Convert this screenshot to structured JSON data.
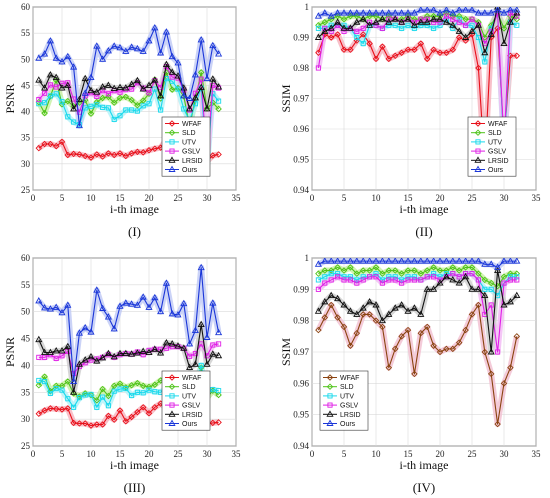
{
  "chart_data": [
    {
      "type": "line",
      "panel_label": "(I)",
      "xlabel": "i-th image",
      "ylabel": "PSNR",
      "xlim": [
        0,
        35
      ],
      "ylim": [
        25,
        60
      ],
      "xticks": [
        0,
        5,
        10,
        15,
        20,
        25,
        30,
        35
      ],
      "yticks": [
        25,
        30,
        35,
        40,
        45,
        50,
        55,
        60
      ],
      "grid": true,
      "legend_position": "bottom-right",
      "series": [
        {
          "name": "WFAF",
          "values": [
            33,
            33.8,
            33.8,
            33.4,
            34.2,
            31.7,
            31.9,
            31.8,
            31.5,
            31.2,
            31.8,
            31.4,
            32,
            31.7,
            32,
            31.5,
            32,
            32.3,
            32.2,
            32.6,
            32.9,
            33.1,
            34.6,
            34.5,
            34,
            32.8,
            28.5,
            36,
            36.8,
            30.5,
            31.6,
            31.8
          ]
        },
        {
          "name": "SLD",
          "values": [
            41.8,
            39.7,
            42.9,
            46,
            41.4,
            42,
            41,
            41.7,
            42.2,
            39.6,
            41.8,
            42.6,
            42.8,
            41.7,
            42.6,
            42.8,
            42.2,
            41.2,
            42.1,
            43.4,
            46.1,
            42.5,
            47.5,
            44.2,
            44.5,
            42.9,
            37.2,
            42.4,
            47.5,
            40.6,
            41.7,
            40.5
          ]
        },
        {
          "name": "UTV",
          "values": [
            41.5,
            41.7,
            43,
            43.4,
            41.9,
            39,
            38,
            37.5,
            40.7,
            41,
            41.3,
            40.8,
            40.7,
            38.5,
            39.2,
            40.3,
            40.3,
            40.1,
            41.1,
            41.5,
            44.3,
            40.3,
            46.3,
            45.8,
            44.3,
            40.5,
            38.3,
            41.5,
            44.5,
            29.5,
            43.4,
            42
          ]
        },
        {
          "name": "GSLV",
          "values": [
            42.3,
            43.5,
            45.1,
            44.7,
            45.4,
            45.5,
            42.4,
            39.9,
            43,
            43.6,
            42.9,
            44,
            43.4,
            44,
            43.7,
            44.2,
            44.3,
            45.5,
            44.5,
            43.6,
            45.9,
            44.6,
            48.6,
            46.6,
            46.4,
            44.1,
            40.3,
            43.5,
            46.2,
            31,
            45,
            44.5
          ]
        },
        {
          "name": "LRSID",
          "values": [
            46,
            44.5,
            47,
            46.5,
            44.5,
            45,
            40.5,
            42.3,
            46.3,
            44,
            43.7,
            44.7,
            45,
            44.4,
            44.6,
            44.5,
            45.2,
            45.9,
            44.3,
            45,
            46,
            43,
            49,
            47.5,
            46.8,
            44.5,
            40.5,
            42.6,
            44.6,
            40.5,
            46.2,
            44.7
          ]
        },
        {
          "name": "Ours",
          "values": [
            50.2,
            51,
            53.5,
            50.2,
            49.5,
            50.5,
            48.5,
            37.3,
            43.5,
            46.5,
            52.5,
            50,
            51.6,
            52.5,
            52.2,
            51.5,
            52.3,
            52,
            51.5,
            53.5,
            56,
            51.2,
            55.2,
            50.5,
            49.3,
            43,
            42.5,
            47,
            53.7,
            46.3,
            52.6,
            51
          ]
        }
      ]
    },
    {
      "type": "line",
      "panel_label": "(II)",
      "xlabel": "i-th image",
      "ylabel": "SSIM",
      "xlim": [
        0,
        35
      ],
      "ylim": [
        0.94,
        1
      ],
      "xticks": [
        0,
        5,
        10,
        15,
        20,
        25,
        30,
        35
      ],
      "yticks": [
        0.94,
        0.95,
        0.96,
        0.97,
        0.98,
        0.99,
        1
      ],
      "grid": true,
      "legend_position": "bottom-right",
      "series": [
        {
          "name": "WFAF",
          "values": [
            0.985,
            0.991,
            0.99,
            0.991,
            0.986,
            0.986,
            0.989,
            0.991,
            0.988,
            0.983,
            0.987,
            0.983,
            0.984,
            0.985,
            0.986,
            0.986,
            0.988,
            0.983,
            0.986,
            0.985,
            0.985,
            0.986,
            0.99,
            0.989,
            0.991,
            0.98,
            0.948,
            0.99,
            0.993,
            0.956,
            0.984,
            0.984
          ]
        },
        {
          "name": "SLD",
          "values": [
            0.994,
            0.995,
            0.996,
            0.997,
            0.996,
            0.997,
            0.997,
            0.996,
            0.997,
            0.997,
            0.996,
            0.997,
            0.996,
            0.996,
            0.997,
            0.996,
            0.996,
            0.997,
            0.997,
            0.997,
            0.998,
            0.997,
            0.997,
            0.996,
            0.996,
            0.995,
            0.99,
            0.994,
            0.998,
            0.993,
            0.997,
            0.996
          ]
        },
        {
          "name": "UTV",
          "values": [
            0.993,
            0.993,
            0.994,
            0.994,
            0.994,
            0.993,
            0.99,
            0.988,
            0.994,
            0.994,
            0.993,
            0.994,
            0.994,
            0.993,
            0.994,
            0.993,
            0.994,
            0.994,
            0.993,
            0.994,
            0.996,
            0.993,
            0.996,
            0.994,
            0.994,
            0.99,
            0.982,
            0.993,
            0.998,
            0.952,
            0.995,
            0.994
          ]
        },
        {
          "name": "GSLV",
          "values": [
            0.98,
            0.993,
            0.992,
            0.994,
            0.992,
            0.993,
            0.992,
            0.993,
            0.995,
            0.994,
            0.993,
            0.996,
            0.996,
            0.995,
            0.996,
            0.995,
            0.996,
            0.996,
            0.995,
            0.995,
            0.997,
            0.996,
            0.995,
            0.994,
            0.996,
            0.994,
            0.988,
            0.992,
            0.998,
            0.955,
            0.998,
            0.997
          ]
        },
        {
          "name": "LRSID",
          "values": [
            0.99,
            0.992,
            0.993,
            0.995,
            0.993,
            0.993,
            0.995,
            0.996,
            0.994,
            0.995,
            0.996,
            0.995,
            0.996,
            0.995,
            0.996,
            0.994,
            0.995,
            0.995,
            0.996,
            0.996,
            0.995,
            0.994,
            0.992,
            0.99,
            0.992,
            0.994,
            0.985,
            0.991,
            1,
            0.988,
            0.995,
            0.998
          ]
        },
        {
          "name": "Ours",
          "values": [
            0.997,
            0.998,
            0.997,
            0.998,
            0.998,
            0.998,
            0.998,
            0.998,
            0.998,
            0.998,
            0.998,
            0.998,
            0.998,
            0.998,
            0.998,
            0.998,
            0.999,
            0.999,
            0.999,
            0.998,
            0.999,
            0.998,
            0.999,
            0.999,
            0.999,
            0.998,
            0.998,
            0.998,
            0.999,
            0.998,
            0.999,
            0.999
          ]
        }
      ]
    },
    {
      "type": "line",
      "panel_label": "(III)",
      "xlabel": "i-th image",
      "ylabel": "PSNR",
      "xlim": [
        0,
        35
      ],
      "ylim": [
        25,
        60
      ],
      "xticks": [
        0,
        5,
        10,
        15,
        20,
        25,
        30,
        35
      ],
      "yticks": [
        25,
        30,
        35,
        40,
        45,
        50,
        55,
        60
      ],
      "grid": true,
      "legend_position": "bottom-right",
      "series": [
        {
          "name": "WFAF",
          "values": [
            31,
            31.6,
            32,
            31.9,
            31.8,
            32,
            29.3,
            29.2,
            29.2,
            28.8,
            29,
            29,
            30.6,
            29.9,
            31.6,
            29.6,
            30.4,
            31.3,
            32.2,
            31.1,
            32.2,
            32.9,
            32.1,
            31.9,
            34.5,
            32.1,
            31.6,
            33,
            33.8,
            29,
            29.3,
            29.4
          ]
        },
        {
          "name": "SLD",
          "values": [
            36.3,
            37.9,
            35.2,
            36.2,
            36.2,
            37,
            34.8,
            34.2,
            34.8,
            34.5,
            33.5,
            35.6,
            34.3,
            36.2,
            36.6,
            35.9,
            36.3,
            36.7,
            36.2,
            36,
            36.4,
            37.2,
            37.5,
            37.3,
            38.1,
            37.5,
            36.4,
            36.8,
            39.6,
            34,
            35.3,
            34.5
          ]
        },
        {
          "name": "UTV",
          "values": [
            37.2,
            37,
            34.8,
            35.7,
            35.4,
            33.8,
            32.2,
            34,
            34.5,
            34.6,
            32.2,
            34.1,
            32.5,
            35.2,
            35.6,
            35.7,
            34.4,
            35,
            34.9,
            35.4,
            35.1,
            35,
            35.8,
            36.2,
            36.3,
            35.2,
            35,
            35.6,
            40,
            35,
            35.5,
            35.3
          ]
        },
        {
          "name": "GSLV",
          "values": [
            41.5,
            41.5,
            42,
            41.3,
            41.8,
            42.6,
            38.5,
            39.8,
            40.5,
            41,
            41.2,
            41.5,
            42,
            41.5,
            42,
            42.2,
            42.1,
            42.5,
            42,
            42.8,
            43,
            43,
            43.2,
            43.5,
            43.5,
            43.2,
            41.7,
            42.2,
            44,
            41.8,
            43.8,
            44
          ]
        },
        {
          "name": "LRSID",
          "values": [
            44.8,
            42.4,
            42.4,
            42.7,
            42.7,
            43.5,
            35,
            40.2,
            41,
            41.6,
            40.8,
            41.4,
            42.2,
            41.6,
            42.2,
            42.2,
            42.1,
            42.3,
            42.6,
            42.4,
            43,
            42.3,
            44.2,
            44,
            43.6,
            43.2,
            39.6,
            40.2,
            47.6,
            40.2,
            42.1,
            41.8
          ]
        },
        {
          "name": "Ours",
          "values": [
            52,
            50.7,
            50.5,
            50.8,
            49.8,
            51.2,
            37,
            46,
            47,
            46.2,
            54,
            50.6,
            49,
            46.8,
            51,
            51.6,
            51.4,
            51.2,
            52.7,
            50.8,
            52.6,
            50,
            55.3,
            49.6,
            49.4,
            51.5,
            44,
            46.5,
            58.2,
            45.2,
            51.6,
            46.1
          ]
        }
      ]
    },
    {
      "type": "line",
      "panel_label": "(IV)",
      "xlabel": "i-th image",
      "ylabel": "SSIM",
      "xlim": [
        0,
        35
      ],
      "ylim": [
        0.94,
        1
      ],
      "xticks": [
        0,
        5,
        10,
        15,
        20,
        25,
        30,
        35
      ],
      "yticks": [
        0.94,
        0.95,
        0.96,
        0.97,
        0.98,
        0.99,
        1
      ],
      "grid": true,
      "legend_position": "bottom-left",
      "series": [
        {
          "name": "WFAF",
          "values": [
            0.977,
            0.981,
            0.985,
            0.981,
            0.978,
            0.972,
            0.976,
            0.982,
            0.982,
            0.98,
            0.978,
            0.965,
            0.971,
            0.975,
            0.977,
            0.963,
            0.976,
            0.978,
            0.972,
            0.97,
            0.971,
            0.971,
            0.973,
            0.977,
            0.982,
            0.985,
            0.97,
            0.963,
            0.947,
            0.96,
            0.965,
            0.975
          ]
        },
        {
          "name": "SLD",
          "values": [
            0.995,
            0.996,
            0.996,
            0.997,
            0.996,
            0.997,
            0.995,
            0.996,
            0.996,
            0.997,
            0.995,
            0.996,
            0.996,
            0.995,
            0.996,
            0.996,
            0.995,
            0.996,
            0.997,
            0.996,
            0.996,
            0.997,
            0.996,
            0.997,
            0.997,
            0.995,
            0.993,
            0.992,
            0.991,
            0.994,
            0.995,
            0.995
          ]
        },
        {
          "name": "UTV",
          "values": [
            0.993,
            0.994,
            0.995,
            0.995,
            0.994,
            0.994,
            0.993,
            0.994,
            0.994,
            0.995,
            0.993,
            0.994,
            0.994,
            0.993,
            0.994,
            0.994,
            0.993,
            0.994,
            0.995,
            0.994,
            0.995,
            0.995,
            0.994,
            0.995,
            0.995,
            0.993,
            0.99,
            0.99,
            0.988,
            0.992,
            0.994,
            0.994
          ]
        },
        {
          "name": "GSLV",
          "values": [
            0.99,
            0.992,
            0.993,
            0.994,
            0.993,
            0.993,
            0.992,
            0.993,
            0.994,
            0.994,
            0.992,
            0.993,
            0.993,
            0.992,
            0.993,
            0.993,
            0.993,
            0.994,
            0.994,
            0.993,
            0.994,
            0.995,
            0.994,
            0.995,
            0.995,
            0.993,
            0.982,
            0.985,
            0.97,
            0.992,
            0.993,
            0.993
          ]
        },
        {
          "name": "LRSID",
          "values": [
            0.983,
            0.986,
            0.988,
            0.987,
            0.985,
            0.983,
            0.982,
            0.984,
            0.986,
            0.985,
            0.98,
            0.982,
            0.984,
            0.985,
            0.983,
            0.984,
            0.982,
            0.99,
            0.99,
            0.992,
            0.994,
            0.993,
            0.992,
            0.994,
            0.99,
            0.99,
            0.988,
            0.97,
            0.996,
            0.985,
            0.986,
            0.988
          ]
        },
        {
          "name": "Ours",
          "values": [
            0.998,
            0.999,
            0.999,
            0.999,
            0.999,
            0.999,
            0.999,
            0.999,
            0.999,
            0.999,
            0.999,
            0.999,
            0.999,
            0.999,
            0.999,
            0.999,
            0.999,
            0.999,
            0.999,
            0.999,
            0.999,
            0.999,
            0.999,
            0.999,
            0.999,
            0.999,
            0.998,
            0.998,
            0.997,
            0.999,
            0.999,
            0.999
          ]
        }
      ]
    }
  ],
  "series_style": {
    "WFAF": {
      "color": "#e8101a",
      "band": "#f7b5c0",
      "marker": "diamond"
    },
    "SLD": {
      "color": "#4ec318",
      "band": "#c9f0a5",
      "marker": "diamond"
    },
    "UTV": {
      "color": "#19d9ec",
      "band": "#b5f2f8",
      "marker": "square"
    },
    "GSLV": {
      "color": "#e020e6",
      "band": "#f2bcf5",
      "marker": "square"
    },
    "LRSID": {
      "color": "#111111",
      "band": "#cfcfcf",
      "marker": "triangle"
    },
    "Ours": {
      "color": "#1a36d8",
      "band": "#c2cbf6",
      "marker": "triangle"
    }
  },
  "series_style_panel4": {
    "WFAF": {
      "color": "#8a4310",
      "band": "#f2c2d2",
      "marker": "diamond"
    }
  }
}
